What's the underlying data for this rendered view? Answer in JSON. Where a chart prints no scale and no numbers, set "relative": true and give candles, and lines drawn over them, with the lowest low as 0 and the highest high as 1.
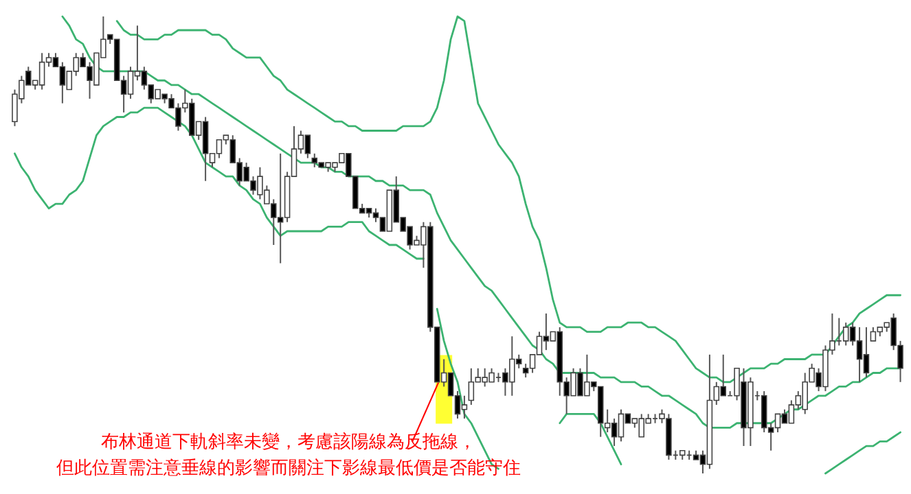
{
  "chart_data": {
    "type": "candlestick",
    "relative": true,
    "categories": [
      null,
      null,
      null,
      null,
      null,
      null,
      null,
      null,
      null,
      null,
      null,
      null,
      null,
      null,
      null,
      null,
      null,
      null,
      null,
      null,
      null,
      null,
      null,
      null,
      null,
      null,
      null,
      null,
      null,
      null,
      null,
      null,
      null,
      null,
      null,
      null,
      null,
      null,
      null,
      null,
      null,
      null,
      null,
      null,
      null,
      null,
      null,
      null,
      null,
      null,
      null,
      null,
      null,
      null,
      null,
      null,
      null,
      null,
      null,
      null,
      null,
      null,
      null,
      null,
      null,
      null,
      null,
      null,
      null,
      null,
      null,
      null,
      null,
      null,
      null,
      null,
      null,
      null,
      null,
      null,
      null,
      null,
      null,
      null,
      null,
      null,
      null,
      null,
      null,
      null,
      null,
      null,
      null,
      null,
      null,
      null,
      null,
      null,
      null,
      null,
      null,
      null,
      null,
      null,
      null,
      null,
      null,
      null,
      null,
      null,
      null,
      null,
      null,
      null,
      null,
      null,
      null,
      null,
      null,
      null,
      null,
      null,
      null,
      null,
      null,
      null,
      null,
      null,
      null,
      null,
      null
    ],
    "ohlc": [
      [
        0.77,
        0.84,
        0.76,
        0.83
      ],
      [
        0.82,
        0.87,
        0.81,
        0.86
      ],
      [
        0.88,
        0.89,
        0.85,
        0.85
      ],
      [
        0.85,
        0.86,
        0.84,
        0.86
      ],
      [
        0.85,
        0.92,
        0.84,
        0.9
      ],
      [
        0.9,
        0.92,
        0.89,
        0.91
      ],
      [
        0.91,
        0.92,
        0.89,
        0.89
      ],
      [
        0.89,
        0.9,
        0.81,
        0.85
      ],
      [
        0.84,
        0.88,
        0.84,
        0.88
      ],
      [
        0.88,
        0.92,
        0.87,
        0.91
      ],
      [
        0.91,
        0.92,
        0.89,
        0.89
      ],
      [
        0.89,
        0.9,
        0.82,
        0.86
      ],
      [
        0.85,
        0.92,
        0.85,
        0.92
      ],
      [
        0.91,
        1.0,
        0.91,
        0.95
      ],
      [
        0.96,
        0.96,
        0.94,
        0.95
      ],
      [
        0.95,
        0.95,
        0.86,
        0.86
      ],
      [
        0.86,
        0.87,
        0.79,
        0.83
      ],
      [
        0.83,
        0.89,
        0.82,
        0.88
      ],
      [
        0.87,
        0.98,
        0.86,
        0.88
      ],
      [
        0.88,
        0.89,
        0.84,
        0.85
      ],
      [
        0.85,
        0.85,
        0.81,
        0.82
      ],
      [
        0.82,
        0.84,
        0.82,
        0.84
      ],
      [
        0.83,
        0.83,
        0.81,
        0.82
      ],
      [
        0.82,
        0.83,
        0.8,
        0.8
      ],
      [
        0.8,
        0.81,
        0.75,
        0.76
      ],
      [
        0.8,
        0.84,
        0.79,
        0.81
      ],
      [
        0.81,
        0.82,
        0.74,
        0.74
      ],
      [
        0.74,
        0.77,
        0.73,
        0.77
      ],
      [
        0.77,
        0.78,
        0.64,
        0.7
      ],
      [
        0.68,
        0.7,
        0.67,
        0.7
      ],
      [
        0.7,
        0.73,
        0.69,
        0.73
      ],
      [
        0.73,
        0.74,
        0.72,
        0.74
      ],
      [
        0.73,
        0.74,
        0.68,
        0.68
      ],
      [
        0.68,
        0.69,
        0.63,
        0.64
      ],
      [
        0.67,
        0.68,
        0.64,
        0.64
      ],
      [
        0.64,
        0.65,
        0.61,
        0.62
      ],
      [
        0.61,
        0.67,
        0.6,
        0.65
      ],
      [
        0.59,
        0.63,
        0.59,
        0.62
      ],
      [
        0.59,
        0.6,
        0.5,
        0.56
      ],
      [
        0.56,
        0.7,
        0.46,
        0.55
      ],
      [
        0.56,
        0.66,
        0.55,
        0.65
      ],
      [
        0.65,
        0.76,
        0.65,
        0.71
      ],
      [
        0.71,
        0.75,
        0.7,
        0.74
      ],
      [
        0.74,
        0.74,
        0.69,
        0.7
      ],
      [
        0.69,
        0.7,
        0.67,
        0.68
      ],
      [
        0.68,
        0.68,
        0.67,
        0.67
      ],
      [
        0.67,
        0.68,
        0.66,
        0.68
      ],
      [
        0.67,
        0.68,
        0.66,
        0.68
      ],
      [
        0.68,
        0.7,
        0.68,
        0.7
      ],
      [
        0.7,
        0.7,
        0.65,
        0.65
      ],
      [
        0.65,
        0.65,
        0.58,
        0.58
      ],
      [
        0.58,
        0.59,
        0.57,
        0.57
      ],
      [
        0.58,
        0.58,
        0.56,
        0.57
      ],
      [
        0.57,
        0.58,
        0.55,
        0.56
      ],
      [
        0.56,
        0.56,
        0.53,
        0.53
      ],
      [
        0.53,
        0.62,
        0.53,
        0.62
      ],
      [
        0.62,
        0.65,
        0.55,
        0.55
      ],
      [
        0.56,
        0.56,
        0.53,
        0.53
      ],
      [
        0.54,
        0.54,
        0.49,
        0.5
      ],
      [
        0.5,
        0.52,
        0.5,
        0.51
      ],
      [
        0.5,
        0.55,
        0.45,
        0.54
      ],
      [
        0.54,
        0.55,
        0.31,
        0.32
      ],
      [
        0.32,
        0.32,
        0.2,
        0.2
      ],
      [
        0.2,
        0.25,
        0.19,
        0.22
      ],
      [
        0.22,
        0.22,
        0.17,
        0.17
      ],
      [
        0.17,
        0.18,
        0.12,
        0.13
      ],
      [
        0.14,
        0.17,
        0.12,
        0.15
      ],
      [
        0.16,
        0.23,
        0.15,
        0.2
      ],
      [
        0.2,
        0.23,
        0.2,
        0.21
      ],
      [
        0.2,
        0.23,
        0.19,
        0.21
      ],
      [
        0.2,
        0.23,
        0.2,
        0.22
      ],
      [
        0.21,
        0.22,
        0.2,
        0.21
      ],
      [
        0.22,
        0.23,
        0.17,
        0.2
      ],
      [
        0.2,
        0.3,
        0.17,
        0.25
      ],
      [
        0.25,
        0.26,
        0.23,
        0.24
      ],
      [
        0.23,
        0.24,
        0.21,
        0.22
      ],
      [
        0.23,
        0.26,
        0.22,
        0.26
      ],
      [
        0.26,
        0.31,
        0.26,
        0.3
      ],
      [
        0.3,
        0.35,
        0.27,
        0.29
      ],
      [
        0.29,
        0.31,
        0.29,
        0.31
      ],
      [
        0.31,
        0.32,
        0.17,
        0.2
      ],
      [
        0.2,
        0.21,
        0.13,
        0.17
      ],
      [
        0.17,
        0.23,
        0.17,
        0.22
      ],
      [
        0.22,
        0.23,
        0.17,
        0.17
      ],
      [
        0.17,
        0.26,
        0.17,
        0.2
      ],
      [
        0.2,
        0.2,
        0.18,
        0.19
      ],
      [
        0.19,
        0.19,
        0.08,
        0.11
      ],
      [
        0.1,
        0.14,
        0.09,
        0.11
      ],
      [
        0.11,
        0.12,
        0.06,
        0.08
      ],
      [
        0.08,
        0.14,
        0.07,
        0.13
      ],
      [
        0.13,
        0.13,
        0.11,
        0.11
      ],
      [
        0.11,
        0.12,
        0.1,
        0.12
      ],
      [
        0.08,
        0.13,
        0.08,
        0.12
      ],
      [
        0.11,
        0.13,
        0.11,
        0.12
      ],
      [
        0.12,
        0.13,
        0.11,
        0.12
      ],
      [
        0.12,
        0.14,
        0.11,
        0.13
      ],
      [
        0.12,
        0.13,
        0.03,
        0.04
      ],
      [
        0.04,
        0.05,
        0.03,
        0.04
      ],
      [
        0.04,
        0.05,
        0.03,
        0.05
      ],
      [
        0.04,
        0.05,
        0.03,
        0.04
      ],
      [
        0.04,
        0.05,
        0.03,
        0.03
      ],
      [
        0.04,
        0.05,
        0,
        0.02
      ],
      [
        0.02,
        0.26,
        0.01,
        0.16
      ],
      [
        0.16,
        0.2,
        0.15,
        0.19
      ],
      [
        0.19,
        0.26,
        0.17,
        0.17
      ],
      [
        0.17,
        0.18,
        0.17,
        0.17
      ],
      [
        0.17,
        0.23,
        0.16,
        0.23
      ],
      [
        0.2,
        0.23,
        0.06,
        0.1
      ],
      [
        0.1,
        0.21,
        0.06,
        0.2
      ],
      [
        0.17,
        0.18,
        0.16,
        0.17
      ],
      [
        0.17,
        0.18,
        0.09,
        0.1
      ],
      [
        0.1,
        0.11,
        0.05,
        0.09
      ],
      [
        0.1,
        0.13,
        0.09,
        0.13
      ],
      [
        0.13,
        0.14,
        0.11,
        0.11
      ],
      [
        0.11,
        0.16,
        0.11,
        0.15
      ],
      [
        0.15,
        0.18,
        0.14,
        0.17
      ],
      [
        0.14,
        0.22,
        0.13,
        0.2
      ],
      [
        0.2,
        0.24,
        0.2,
        0.23
      ],
      [
        0.22,
        0.23,
        0.18,
        0.19
      ],
      [
        0.19,
        0.28,
        0.18,
        0.27
      ],
      [
        0.27,
        0.35,
        0.26,
        0.29
      ],
      [
        0.29,
        0.34,
        0.28,
        0.29
      ],
      [
        0.29,
        0.33,
        0.28,
        0.32
      ],
      [
        0.32,
        0.33,
        0.28,
        0.29
      ],
      [
        0.29,
        0.32,
        0.2,
        0.25
      ],
      [
        0.26,
        0.32,
        0.21,
        0.22
      ],
      [
        0.29,
        0.32,
        0.29,
        0.31
      ],
      [
        0.31,
        0.32,
        0.3,
        0.32
      ],
      [
        0.32,
        0.33,
        0.31,
        0.33
      ],
      [
        0.34,
        0.35,
        0.27,
        0.28
      ],
      [
        0.28,
        0.29,
        0.2,
        0.23
      ]
    ],
    "series": [
      {
        "type": "line",
        "color": "#3cb371",
        "values": [
          null,
          null,
          null,
          null,
          null,
          null,
          null,
          null,
          null,
          null,
          null,
          null,
          null,
          null,
          null,
          0.99,
          0.97,
          0.96,
          0.96,
          0.95,
          0.95,
          0.95,
          0.96,
          0.96,
          0.97,
          0.97,
          0.97,
          0.97,
          0.97,
          0.96,
          0.96,
          0.95,
          0.93,
          0.92,
          0.91,
          0.91,
          0.91,
          0.89,
          0.87,
          0.86,
          0.84,
          0.83,
          0.82,
          0.81,
          0.8,
          0.79,
          0.78,
          0.77,
          0.77,
          0.76,
          0.76,
          0.75,
          0.75,
          0.75,
          0.75,
          0.75,
          0.75,
          0.76,
          0.76,
          0.76,
          0.76,
          0.77,
          0.8,
          0.86,
          0.95,
          1.0,
          0.99,
          0.9,
          0.81,
          0.78,
          0.75,
          0.72,
          0.7,
          0.68,
          0.65,
          0.59,
          0.54,
          0.51,
          0.45,
          0.38,
          0.33,
          0.32,
          0.32,
          0.32,
          0.31,
          0.31,
          0.31,
          0.32,
          0.32,
          0.32,
          0.33,
          0.33,
          0.33,
          0.32,
          0.32,
          0.31,
          0.3,
          0.29,
          0.27,
          0.25,
          0.23,
          0.22,
          0.21,
          0.21,
          0.2,
          0.2,
          0.21,
          0.22,
          0.23,
          0.23,
          0.23,
          0.24,
          0.24,
          0.25,
          0.25,
          0.25,
          0.25,
          0.26,
          0.26,
          0.26,
          0.28,
          0.3,
          0.32,
          0.33,
          0.35,
          0.36,
          0.37,
          0.38,
          0.39,
          0.39,
          0.39
        ]
      },
      {
        "type": "line",
        "color": "#3cb371",
        "values": [
          null,
          null,
          null,
          null,
          null,
          null,
          null,
          1.0,
          0.98,
          0.95,
          0.94,
          0.91,
          0.89,
          0.88,
          0.88,
          0.88,
          0.88,
          0.88,
          0.88,
          0.88,
          0.87,
          0.86,
          0.86,
          0.85,
          0.85,
          0.84,
          0.83,
          0.83,
          0.82,
          0.81,
          0.8,
          0.79,
          0.78,
          0.77,
          0.76,
          0.75,
          0.74,
          0.73,
          0.72,
          0.71,
          0.7,
          0.69,
          0.68,
          0.68,
          0.68,
          0.67,
          0.67,
          0.66,
          0.66,
          0.65,
          0.65,
          0.65,
          0.65,
          0.64,
          0.64,
          0.63,
          0.63,
          0.63,
          0.62,
          0.62,
          0.62,
          0.61,
          0.57,
          0.54,
          0.51,
          0.49,
          0.47,
          0.45,
          0.43,
          0.41,
          0.4,
          0.38,
          0.36,
          0.34,
          0.32,
          0.3,
          0.28,
          0.27,
          0.25,
          0.24,
          0.22,
          0.22,
          0.22,
          0.22,
          0.22,
          0.22,
          0.21,
          0.21,
          0.21,
          0.2,
          0.2,
          0.2,
          0.19,
          0.19,
          0.18,
          0.17,
          0.17,
          0.16,
          0.15,
          0.14,
          0.13,
          0.11,
          0.1,
          0.1,
          0.1,
          0.1,
          0.11,
          0.11,
          0.11,
          0.11,
          0.11,
          0.11,
          0.12,
          0.13,
          0.14,
          0.14,
          0.15,
          0.16,
          0.17,
          0.17,
          0.18,
          0.19,
          0.19,
          0.2,
          0.2,
          0.21,
          0.22,
          0.22,
          0.23,
          0.23,
          0.23
        ]
      },
      {
        "type": "line",
        "color": "#3cb371",
        "values": [
          0.7,
          0.67,
          0.65,
          0.62,
          0.6,
          0.58,
          0.59,
          0.59,
          0.61,
          0.62,
          0.64,
          0.69,
          0.74,
          0.76,
          0.77,
          0.78,
          0.78,
          0.79,
          0.79,
          0.8,
          0.8,
          0.8,
          0.79,
          0.78,
          0.77,
          0.76,
          0.74,
          0.71,
          0.68,
          0.67,
          0.66,
          0.65,
          0.65,
          0.63,
          0.62,
          0.6,
          0.59,
          0.56,
          0.54,
          0.52,
          0.53,
          0.53,
          0.53,
          0.53,
          0.53,
          0.53,
          0.54,
          0.54,
          0.54,
          0.55,
          0.55,
          0.55,
          0.53,
          0.52,
          0.51,
          0.5,
          0.5,
          0.49,
          0.48,
          0.47,
          0.47,
          null,
          0.36,
          0.29,
          0.24,
          0.2,
          0.13,
          0.11,
          0.08,
          0.05,
          0.02,
          0.01,
          null,
          null,
          null,
          null,
          null,
          null,
          null,
          null,
          0.11,
          0.13,
          0.13,
          0.13,
          0.13,
          0.13,
          0.11,
          0.08,
          0.05,
          0.02,
          null,
          null,
          null,
          null,
          null,
          null,
          null,
          null,
          null,
          null,
          null,
          null,
          null,
          null,
          null,
          null,
          null,
          null,
          null,
          null,
          null,
          null,
          null,
          null,
          null,
          null,
          null,
          null,
          null,
          0.0,
          0.01,
          0.02,
          0.03,
          0.04,
          0.05,
          0.06,
          0.06,
          0.07,
          0.07,
          0.08,
          0.09
        ]
      }
    ],
    "annotations": [
      "布林通道下軌斜率未變，考慮該陽線為反拖線，",
      "但此位置需注意垂線的影響而關注下影線最低價是否能守住"
    ]
  }
}
